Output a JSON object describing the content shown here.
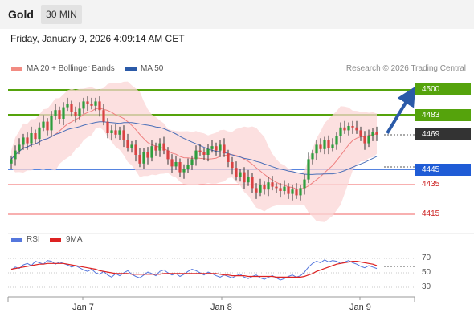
{
  "header": {
    "symbol": "Gold",
    "timeframe": "30 MIN"
  },
  "timestamp": "Friday, January 9, 2026 4:09:14 AM CET",
  "legend": {
    "ma20": "MA 20 + Bollinger Bands",
    "ma20_color": "#f28b82",
    "ma50": "MA 50",
    "ma50_color": "#2b5aa8",
    "copyright": "Research © 2026 Trading Central"
  },
  "levels": {
    "r2": "4500",
    "r1": "4483",
    "last": "4469",
    "pivot": "4445",
    "s1": "4435",
    "s2": "4415",
    "resistance_color": "#55a30c",
    "pivot_color": "#1f5cd6",
    "support_color": "#f06262",
    "last_color": "#333333"
  },
  "rsi_legend": {
    "rsi": "RSI",
    "rsi_color": "#5577dd",
    "ma": "9MA",
    "ma_color": "#dd2222"
  },
  "rsi_axis": [
    "70",
    "50",
    "30"
  ],
  "x_axis": [
    "Jan 7",
    "Jan 8",
    "Jan 9"
  ],
  "chart_data": {
    "type": "candlestick",
    "y_unit": "price",
    "ylim": [
      4405,
      4512
    ],
    "levels": [
      4500,
      4483,
      4445,
      4435,
      4415
    ],
    "last_price": 4469,
    "x_ticks": [
      "Jan 7",
      "Jan 8",
      "Jan 9"
    ],
    "closes": [
      4452,
      4458,
      4462,
      4467,
      4463,
      4470,
      4466,
      4474,
      4478,
      4472,
      4482,
      4486,
      4480,
      4488,
      4490,
      4485,
      4482,
      4487,
      4492,
      4490,
      4489,
      4492,
      4486,
      4478,
      4470,
      4472,
      4469,
      4472,
      4465,
      4460,
      4462,
      4455,
      4449,
      4457,
      4453,
      4461,
      4458,
      4463,
      4458,
      4452,
      4447,
      4450,
      4443,
      4445,
      4448,
      4452,
      4458,
      4457,
      4455,
      4459,
      4461,
      4458,
      4462,
      4456,
      4450,
      4446,
      4440,
      4443,
      4436,
      4440,
      4432,
      4429,
      4434,
      4431,
      4436,
      4433,
      4432,
      4430,
      4433,
      4428,
      4431,
      4427,
      4432,
      4438,
      4452,
      4456,
      4462,
      4459,
      4465,
      4460,
      4462,
      4468,
      4474,
      4472,
      4475,
      4474,
      4472,
      4468,
      4463,
      4468,
      4471,
      4469
    ],
    "rsi": [
      54,
      58,
      56,
      61,
      63,
      60,
      66,
      64,
      62,
      67,
      66,
      62,
      65,
      63,
      61,
      58,
      60,
      57,
      54,
      52,
      55,
      50,
      48,
      52,
      47,
      44,
      49,
      46,
      50,
      53,
      48,
      45,
      43,
      47,
      51,
      49,
      46,
      52,
      54,
      50,
      47,
      49,
      45,
      48,
      52,
      55,
      53,
      50,
      47,
      51,
      49,
      46,
      44,
      47,
      45,
      43,
      46,
      48,
      44,
      42,
      45,
      47,
      43,
      41,
      44,
      46,
      43,
      40,
      42,
      45,
      47,
      44,
      46,
      51,
      58,
      63,
      66,
      64,
      68,
      65,
      67,
      66,
      63,
      65,
      67,
      64,
      62,
      59,
      57,
      60,
      58,
      56
    ],
    "rsi_ma": [
      55,
      56,
      57,
      58,
      59,
      60,
      61,
      62,
      62,
      63,
      63,
      63,
      63,
      63,
      62,
      61,
      60,
      59,
      58,
      57,
      56,
      55,
      53,
      52,
      51,
      50,
      49,
      49,
      49,
      49,
      48,
      48,
      48,
      48,
      48,
      48,
      48,
      48,
      49,
      49,
      49,
      49,
      49,
      49,
      49,
      49,
      49,
      49,
      49,
      49,
      49,
      49,
      48,
      47,
      47,
      46,
      46,
      46,
      46,
      45,
      45,
      45,
      45,
      45,
      45,
      45,
      44,
      44,
      44,
      44,
      44,
      44,
      44,
      45,
      47,
      49,
      52,
      54,
      56,
      58,
      60,
      62,
      63,
      64,
      65,
      66,
      66,
      65,
      64,
      63,
      62,
      60
    ]
  }
}
